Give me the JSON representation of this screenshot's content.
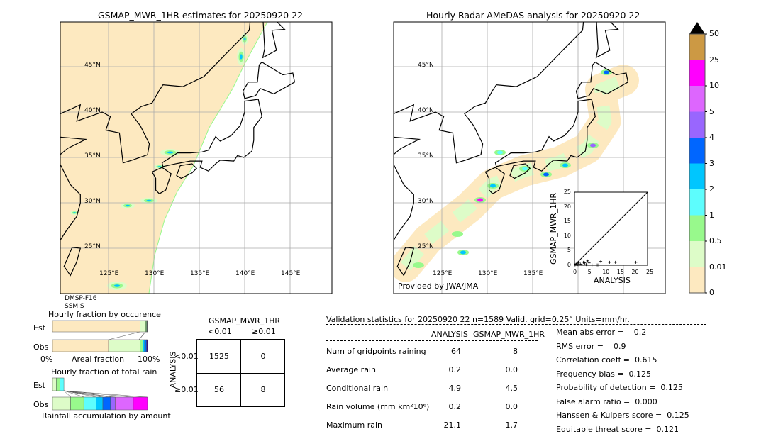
{
  "left_map": {
    "title": "GSMAP_MWR_1HR estimates for 20250920 22",
    "sensor_line1": "DMSP-F16",
    "sensor_line2": "SSMIS"
  },
  "right_map": {
    "title": "Hourly Radar-AMeDAS analysis for 20250920 22",
    "credit": "Provided by JWA/JMA"
  },
  "lat_labels": [
    "45°N",
    "40°N",
    "35°N",
    "30°N",
    "25°N"
  ],
  "lon_labels_left": [
    "125°E",
    "130°E",
    "135°E",
    "140°E",
    "145°E"
  ],
  "lon_labels_right": [
    "125°E",
    "130°E",
    "135°E"
  ],
  "colorbar": {
    "labels": [
      "0",
      "0.01",
      "0.5",
      "1",
      "2",
      "3",
      "4",
      "5",
      "10",
      "25",
      "50"
    ],
    "colors": [
      "#fde9c0",
      "#ddfcc8",
      "#98f98c",
      "#5dfdfd",
      "#00c6fe",
      "#0066ff",
      "#9966fe",
      "#dd66fe",
      "#ff00fe",
      "#cc9944"
    ],
    "extend_color": "#000000"
  },
  "chart_data": [
    {
      "type": "scatter",
      "xlabel": "ANALYSIS",
      "ylabel": "GSMAP_MWR_1HR",
      "xlim": [
        0,
        25
      ],
      "ylim": [
        0,
        25
      ],
      "xticks": [
        "0",
        "5",
        "10",
        "15",
        "20",
        "25"
      ],
      "yticks": [
        "0",
        "5",
        "10",
        "15",
        "20",
        "25"
      ],
      "diagonal": true,
      "points": [
        [
          0.2,
          0.1
        ],
        [
          0.5,
          0.3
        ],
        [
          0.8,
          0.5
        ],
        [
          1.0,
          0.2
        ],
        [
          1.3,
          0.8
        ],
        [
          1.5,
          0.1
        ],
        [
          2.0,
          0.4
        ],
        [
          2.5,
          0.2
        ],
        [
          3.0,
          1.0
        ],
        [
          3.5,
          0.8
        ],
        [
          4.0,
          0.2
        ],
        [
          4.5,
          1.5
        ],
        [
          5.0,
          0.8
        ],
        [
          6.0,
          0.1
        ],
        [
          7.5,
          0.1
        ],
        [
          8.0,
          0.1
        ],
        [
          9.0,
          1.3
        ],
        [
          12.0,
          1.0
        ],
        [
          14.0,
          1.0
        ],
        [
          21.0,
          1.0
        ]
      ]
    },
    {
      "type": "bar",
      "title": "Hourly fraction by occurence",
      "categories": [
        "Est",
        "Obs"
      ],
      "xlabel": "Areal fraction",
      "xtick_left": "0%",
      "xtick_right": "100%",
      "series": [
        {
          "category": "Est",
          "fractions": [
            0.92,
            0.06,
            0.01,
            0.005,
            0.003,
            0.002
          ]
        },
        {
          "category": "Obs",
          "fractions": [
            0.59,
            0.33,
            0.03,
            0.02,
            0.02,
            0.01
          ]
        }
      ]
    },
    {
      "type": "bar",
      "title": "Hourly fraction of total rain",
      "categories": [
        "Est",
        "Obs"
      ],
      "xlabel": "Rainfall accumulation by amount",
      "series": [
        {
          "category": "Est",
          "fractions": [
            0.04,
            0.04,
            0.04
          ]
        },
        {
          "category": "Obs",
          "fractions": [
            0.19,
            0.14,
            0.13,
            0.07,
            0.08,
            0.05,
            0.19,
            0.15
          ]
        }
      ]
    }
  ],
  "contingency": {
    "col_title": "GSMAP_MWR_1HR",
    "col_labels": [
      "<0.01",
      "≥0.01"
    ],
    "row_title": "ANALYSIS",
    "row_labels": [
      "<0.01",
      "≥0.01"
    ],
    "cells": [
      [
        "1525",
        "0"
      ],
      [
        "56",
        "8"
      ]
    ]
  },
  "stats": {
    "header": "Validation statistics for 20250920 22  n=1589 Valid. grid=0.25˚ Units=mm/hr.",
    "col1": "ANALYSIS",
    "col2": "GSMAP_MWR_1HR",
    "rows": [
      {
        "label": "Num of gridpoints raining",
        "a": "64",
        "b": "8"
      },
      {
        "label": "Average rain",
        "a": "0.2",
        "b": "0.0"
      },
      {
        "label": "Conditional rain",
        "a": "4.9",
        "b": "4.5"
      },
      {
        "label": "Rain volume (mm km²10⁶)",
        "a": "0.2",
        "b": "0.0"
      },
      {
        "label": "Maximum rain",
        "a": "21.1",
        "b": "1.7"
      }
    ],
    "scores": [
      "Mean abs error =    0.2",
      "RMS error =    0.9",
      "Correlation coeff =  0.615",
      "Frequency bias =  0.125",
      "Probability of detection =  0.125",
      "False alarm ratio =  0.000",
      "Hanssen & Kuipers score =  0.125",
      "Equitable threat score =  0.121"
    ]
  }
}
